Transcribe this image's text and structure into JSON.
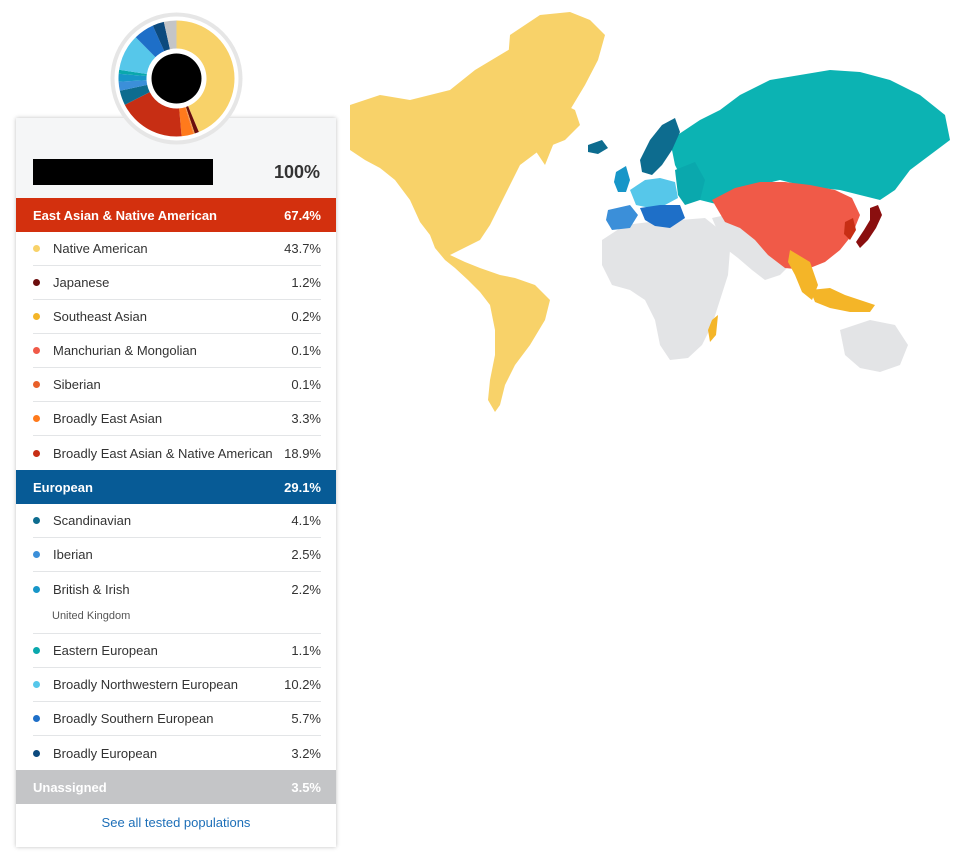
{
  "summary": {
    "total_value": "100%"
  },
  "categories": [
    {
      "label": "East Asian & Native American",
      "value": "67.4%",
      "color": "#d3300e",
      "items": [
        {
          "label": "Native American",
          "value": "43.7%",
          "color": "#f8d269"
        },
        {
          "label": "Japanese",
          "value": "1.2%",
          "color": "#6b0d0d"
        },
        {
          "label": "Southeast Asian",
          "value": "0.2%",
          "color": "#f4b528"
        },
        {
          "label": "Manchurian & Mongolian",
          "value": "0.1%",
          "color": "#f05a48"
        },
        {
          "label": "Siberian",
          "value": "0.1%",
          "color": "#e8602a"
        },
        {
          "label": "Broadly East Asian",
          "value": "3.3%",
          "color": "#ff7a1c"
        },
        {
          "label": "Broadly East Asian & Native American",
          "value": "18.9%",
          "color": "#c72e14"
        }
      ]
    },
    {
      "label": "European",
      "value": "29.1%",
      "color": "#075b96",
      "items": [
        {
          "label": "Scandinavian",
          "value": "4.1%",
          "color": "#0d6c8f"
        },
        {
          "label": "Iberian",
          "value": "2.5%",
          "color": "#3b8fd9"
        },
        {
          "label": "British & Irish",
          "value": "2.2%",
          "color": "#1796c8",
          "note": "United Kingdom"
        },
        {
          "label": "Eastern European",
          "value": "1.1%",
          "color": "#0aa8ad"
        },
        {
          "label": "Broadly Northwestern European",
          "value": "10.2%",
          "color": "#56c7ea"
        },
        {
          "label": "Broadly Southern European",
          "value": "5.7%",
          "color": "#1e6fc8"
        },
        {
          "label": "Broadly European",
          "value": "3.2%",
          "color": "#0c4a7e"
        }
      ]
    },
    {
      "label": "Unassigned",
      "value": "3.5%",
      "color": "#c4c5c7",
      "items": []
    }
  ],
  "footer": {
    "link_label": "See all tested populations"
  },
  "donut": {
    "center_color": "#000000",
    "segments": [
      {
        "value": 43.7,
        "color": "#f8d269"
      },
      {
        "value": 1.2,
        "color": "#6b0d0d"
      },
      {
        "value": 0.2,
        "color": "#f4b528"
      },
      {
        "value": 0.1,
        "color": "#f05a48"
      },
      {
        "value": 0.1,
        "color": "#e8602a"
      },
      {
        "value": 3.3,
        "color": "#ff7a1c"
      },
      {
        "value": 18.9,
        "color": "#c72e14"
      },
      {
        "value": 4.1,
        "color": "#0d6c8f"
      },
      {
        "value": 2.5,
        "color": "#3b8fd9"
      },
      {
        "value": 2.2,
        "color": "#1796c8"
      },
      {
        "value": 1.1,
        "color": "#0aa8ad"
      },
      {
        "value": 10.2,
        "color": "#56c7ea"
      },
      {
        "value": 5.7,
        "color": "#1e6fc8"
      },
      {
        "value": 3.2,
        "color": "#0c4a7e"
      },
      {
        "value": 3.5,
        "color": "#c4c5c7"
      }
    ]
  },
  "map": {
    "regions": [
      {
        "name": "Americas",
        "color": "#f8d269"
      },
      {
        "name": "Greenland",
        "color": "#f8d269"
      },
      {
        "name": "Africa",
        "color": "#e3e4e6"
      },
      {
        "name": "Middle East & South Asia",
        "color": "#e3e4e6"
      },
      {
        "name": "Russia & Central Asia",
        "color": "#0cb3b3"
      },
      {
        "name": "China & Mongolia",
        "color": "#f05a48"
      },
      {
        "name": "Japan",
        "color": "#8a0f0f"
      },
      {
        "name": "Korea",
        "color": "#c72e14"
      },
      {
        "name": "Southeast Asia",
        "color": "#f4b528"
      },
      {
        "name": "Scandinavia",
        "color": "#0d6c8f"
      },
      {
        "name": "Iceland",
        "color": "#0d6c8f"
      },
      {
        "name": "British Isles",
        "color": "#1796c8"
      },
      {
        "name": "Northwestern Europe",
        "color": "#56c7ea"
      },
      {
        "name": "Iberia",
        "color": "#3b8fd9"
      },
      {
        "name": "Southern Europe",
        "color": "#1e6fc8"
      },
      {
        "name": "Eastern Europe",
        "color": "#0aa8ad"
      },
      {
        "name": "Madagascar",
        "color": "#f4b528"
      },
      {
        "name": "Australia",
        "color": "#e3e4e6"
      }
    ]
  }
}
